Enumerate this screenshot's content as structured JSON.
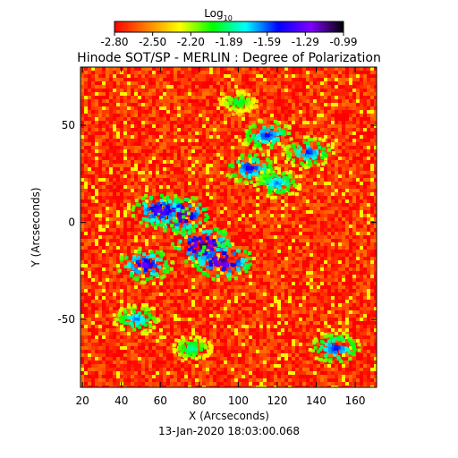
{
  "chart_data": {
    "type": "heatmap",
    "title": "Hinode SOT/SP - MERLIN : Degree of Polarization",
    "colorbar": {
      "label_base": "Log",
      "label_sub": "10",
      "ticks": [
        "-2.80",
        "-2.50",
        "-2.20",
        "-1.89",
        "-1.59",
        "-1.29",
        "-0.99"
      ],
      "range": [
        -2.8,
        -0.99
      ],
      "colormap": [
        "#ff0000",
        "#ff8000",
        "#ffff00",
        "#00ff00",
        "#00ffff",
        "#0000ff",
        "#8000ff",
        "#000000"
      ]
    },
    "xlabel": "X (Arcseconds)",
    "ylabel": "Y (Arcseconds)",
    "xlim": [
      19,
      171
    ],
    "ylim": [
      -85,
      80
    ],
    "xticks": [
      20,
      40,
      60,
      80,
      100,
      120,
      140,
      160
    ],
    "yticks": [
      -50,
      0,
      50
    ],
    "background_level": -2.7,
    "regions": [
      {
        "x": 70,
        "y": 4,
        "level": -1.05
      },
      {
        "x": 82,
        "y": -12,
        "level": -1.0
      },
      {
        "x": 92,
        "y": -20,
        "level": -1.05
      },
      {
        "x": 60,
        "y": 6,
        "level": -1.2
      },
      {
        "x": 52,
        "y": -22,
        "level": -1.25
      },
      {
        "x": 106,
        "y": 28,
        "level": -1.4
      },
      {
        "x": 115,
        "y": 45,
        "level": -1.45
      },
      {
        "x": 136,
        "y": 36,
        "level": -1.5
      },
      {
        "x": 150,
        "y": -65,
        "level": -1.45
      },
      {
        "x": 48,
        "y": -50,
        "level": -1.6
      },
      {
        "x": 120,
        "y": 20,
        "level": -1.6
      },
      {
        "x": 76,
        "y": -65,
        "level": -1.8
      },
      {
        "x": 100,
        "y": 62,
        "level": -1.9
      }
    ],
    "timestamp": "13-Jan-2020 18:03:00.068"
  }
}
